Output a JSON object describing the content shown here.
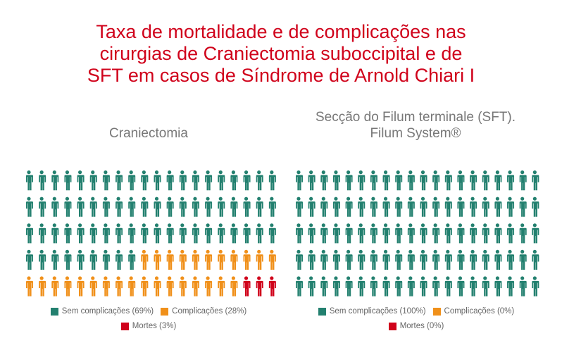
{
  "title": [
    "Taxa de mortalidade e de complicações nas",
    "cirurgias de Craniectomia suboccipital e de",
    "SFT em casos de Síndrome de Arnold Chiari I"
  ],
  "colors": {
    "sem": "#23806f",
    "comp": "#f0901a",
    "mortes": "#d0021b",
    "title": "#d0021b"
  },
  "chart_data": [
    {
      "type": "pictograph",
      "title": [
        "Craniectomia"
      ],
      "total_icons": 100,
      "columns": 20,
      "rows": 5,
      "icon": "person-icon",
      "series": [
        {
          "name": "Sem complicações",
          "value": 69,
          "label": "Sem complicações (69%)",
          "color": "#23806f"
        },
        {
          "name": "Complicações",
          "value": 28,
          "label": "Complicações (28%)",
          "color": "#f0901a"
        },
        {
          "name": "Mortes",
          "value": 3,
          "label": "Mortes (3%)",
          "color": "#d0021b"
        }
      ]
    },
    {
      "type": "pictograph",
      "title": [
        "Secção do Filum terminale (SFT).",
        "Filum System®"
      ],
      "total_icons": 100,
      "columns": 20,
      "rows": 5,
      "icon": "person-icon",
      "series": [
        {
          "name": "Sem complicações",
          "value": 100,
          "label": "Sem complicações (100%)",
          "color": "#23806f"
        },
        {
          "name": "Complicações",
          "value": 0,
          "label": "Complicações (0%)",
          "color": "#f0901a"
        },
        {
          "name": "Mortes",
          "value": 0,
          "label": "Mortes (0%)",
          "color": "#d0021b"
        }
      ]
    }
  ]
}
